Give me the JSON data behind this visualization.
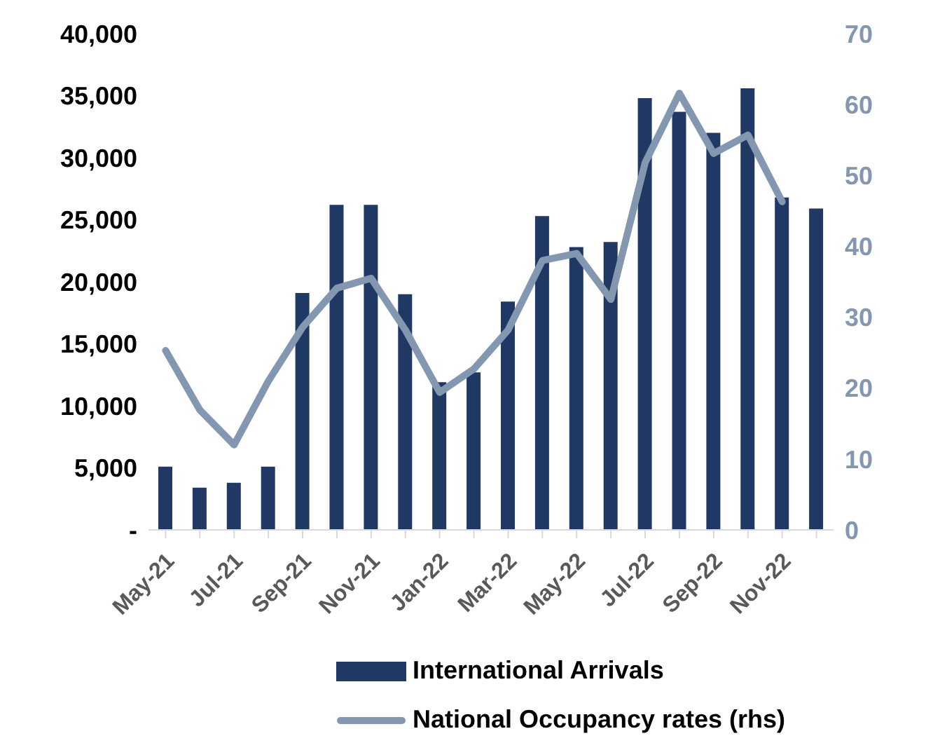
{
  "chart_data": {
    "type": "bar",
    "categories": [
      "May-21",
      null,
      "Jul-21",
      null,
      "Sep-21",
      null,
      "Nov-21",
      null,
      "Jan-22",
      null,
      "Mar-22",
      null,
      "May-22",
      null,
      "Jul-22",
      null,
      "Sep-22",
      null,
      "Nov-22",
      null
    ],
    "series": [
      {
        "name": "International Arrivals",
        "color": "#203864",
        "values": [
          5100,
          3400,
          3800,
          5100,
          19100,
          26200,
          26200,
          19000,
          11900,
          12700,
          18400,
          25300,
          22800,
          23200,
          34800,
          33700,
          32000,
          35600,
          26800,
          25900
        ]
      },
      {
        "name": "National Occupancy rates (rhs)",
        "type": "line",
        "axis": "y2",
        "color": "#8497b0",
        "values": [
          25.3,
          16.9,
          12.0,
          21.0,
          28.6,
          34.1,
          35.5,
          28.2,
          19.4,
          22.7,
          28.2,
          38.0,
          39.0,
          32.5,
          51.8,
          61.6,
          53.1,
          55.7,
          46.3,
          null
        ]
      }
    ],
    "ylim": [
      0,
      40000
    ],
    "yticks": [
      {
        "value": 0,
        "label": "-"
      },
      {
        "value": 5000,
        "label": "5,000"
      },
      {
        "value": 10000,
        "label": "10,000"
      },
      {
        "value": 15000,
        "label": "15,000"
      },
      {
        "value": 20000,
        "label": "20,000"
      },
      {
        "value": 25000,
        "label": "25,000"
      },
      {
        "value": 30000,
        "label": "30,000"
      },
      {
        "value": 35000,
        "label": "35,000"
      },
      {
        "value": 40000,
        "label": "40,000"
      }
    ],
    "y2lim": [
      0,
      70
    ],
    "y2ticks": [
      0,
      10,
      20,
      30,
      40,
      50,
      60,
      70
    ],
    "grid": false,
    "legend": "bottom",
    "marker": "none"
  }
}
